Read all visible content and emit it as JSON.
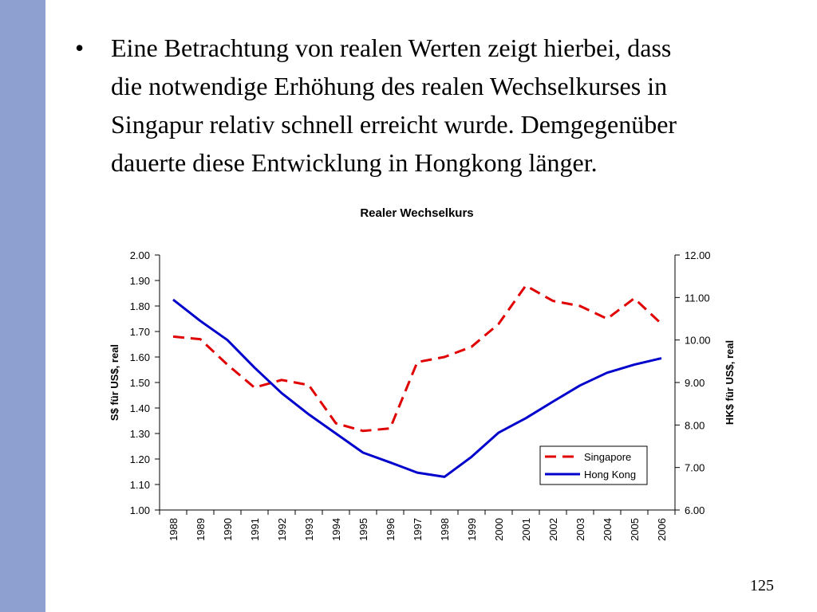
{
  "slide": {
    "bullet_lines": [
      "Eine Betrachtung von realen Werten zeigt hierbei, dass",
      "die notwendige Erhöhung des realen Wechselkurses in",
      "Singapur relativ schnell erreicht wurde. Demgegenüber",
      "dauerte diese Entwicklung in Hongkong länger."
    ],
    "bullet_symbol": "•",
    "page_number": "125"
  },
  "colors": {
    "sidebar": "#8EA0D0",
    "singapore": "#E00000",
    "hongkong": "#0000CC"
  },
  "chart_data": {
    "type": "line",
    "title": "Realer Wechselkurs",
    "categories": [
      "1988",
      "1989",
      "1990",
      "1991",
      "1992",
      "1993",
      "1994",
      "1995",
      "1996",
      "1997",
      "1998",
      "1999",
      "2000",
      "2001",
      "2002",
      "2003",
      "2004",
      "2005",
      "2006"
    ],
    "y_left": {
      "label": "S$ für US$, real",
      "min": 1.0,
      "max": 2.0,
      "step": 0.1,
      "ticks": [
        "1.00",
        "1.10",
        "1.20",
        "1.30",
        "1.40",
        "1.50",
        "1.60",
        "1.70",
        "1.80",
        "1.90",
        "2.00"
      ]
    },
    "y_right": {
      "label": "HK$ für US$, real",
      "min": 6.0,
      "max": 12.0,
      "step": 1.0,
      "ticks": [
        "6.00",
        "7.00",
        "8.00",
        "9.00",
        "10.00",
        "11.00",
        "12.00"
      ]
    },
    "series": [
      {
        "name": "Singapore",
        "axis": "left",
        "style": "dashed",
        "values": [
          1.68,
          1.67,
          1.57,
          1.48,
          1.51,
          1.49,
          1.34,
          1.31,
          1.32,
          1.58,
          1.6,
          1.64,
          1.73,
          1.88,
          1.82,
          1.8,
          1.75,
          1.83,
          1.73
        ]
      },
      {
        "name": "Hong Kong",
        "axis": "right",
        "style": "solid",
        "values": [
          10.95,
          10.45,
          10.0,
          9.35,
          8.75,
          8.25,
          7.8,
          7.35,
          7.12,
          6.88,
          6.78,
          7.25,
          7.82,
          8.16,
          8.55,
          8.93,
          9.23,
          9.42,
          9.57
        ]
      }
    ],
    "legend_position": "bottom-right",
    "grid": false
  }
}
